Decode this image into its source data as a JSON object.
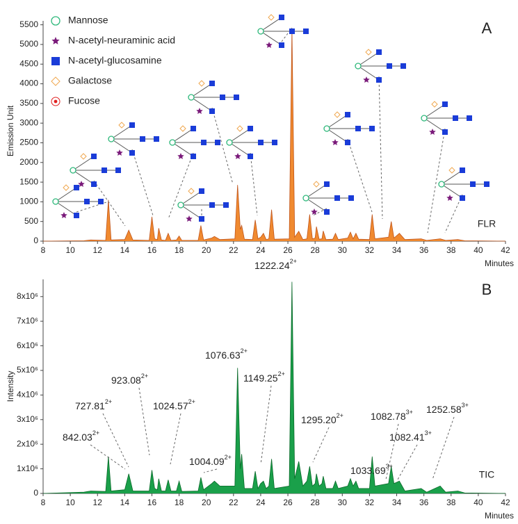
{
  "chart_data": [
    {
      "type": "area",
      "panel": "A",
      "trace_label": "FLR",
      "y_label": "Emission Unit",
      "x_label": "Minutes",
      "color": "#f08a30",
      "edge": "#c0541a",
      "legend": [
        {
          "label": "Mannose",
          "symbol": "circle",
          "color": "#2db87a"
        },
        {
          "label": "N-acetyl-neuraminic acid",
          "symbol": "star",
          "color": "#7a1a7a"
        },
        {
          "label": "N-acetyl-glucosamine",
          "symbol": "square",
          "color": "#1a3cd8"
        },
        {
          "label": "Galactose",
          "symbol": "diamond",
          "color": "#f0a850"
        },
        {
          "label": "Fucose",
          "symbol": "fucose",
          "color": "#e02020"
        }
      ],
      "xlim": [
        8,
        42
      ],
      "xticks": [
        8,
        10,
        12,
        14,
        16,
        18,
        20,
        22,
        24,
        26,
        28,
        30,
        32,
        34,
        36,
        38,
        40,
        42
      ],
      "ylim": [
        0,
        5600
      ],
      "yticks": [
        0,
        500,
        1000,
        1500,
        2000,
        2500,
        3000,
        3500,
        4000,
        4500,
        5000,
        5500
      ],
      "x": [
        8,
        11,
        11.5,
        12.6,
        12.8,
        13.0,
        14.0,
        14.3,
        14.6,
        15.8,
        16.0,
        16.2,
        16.4,
        16.5,
        16.7,
        17.0,
        17.2,
        17.4,
        17.8,
        18.0,
        18.2,
        19.4,
        19.6,
        19.8,
        20.4,
        20.6,
        21.0,
        22.1,
        22.3,
        22.5,
        22.6,
        22.8,
        23.4,
        23.6,
        23.8,
        24.0,
        24.2,
        24.4,
        24.6,
        24.8,
        25.0,
        26.1,
        26.3,
        26.5,
        26.8,
        27.1,
        27.4,
        27.6,
        27.8,
        28.0,
        28.1,
        28.3,
        28.5,
        28.6,
        28.8,
        29.3,
        29.5,
        29.7,
        30.4,
        30.6,
        30.8,
        31.0,
        31.2,
        32.0,
        32.2,
        32.4,
        33.4,
        33.6,
        33.8,
        34.2,
        34.6,
        35.8,
        36.2,
        37.2,
        37.6,
        38.5,
        39,
        42
      ],
      "values": [
        0,
        10,
        30,
        20,
        1050,
        30,
        40,
        280,
        30,
        20,
        620,
        60,
        40,
        330,
        30,
        20,
        200,
        20,
        30,
        130,
        20,
        20,
        400,
        30,
        80,
        120,
        40,
        60,
        1430,
        300,
        400,
        50,
        40,
        540,
        60,
        100,
        200,
        40,
        60,
        800,
        50,
        60,
        5400,
        100,
        250,
        40,
        60,
        680,
        60,
        80,
        370,
        50,
        60,
        260,
        40,
        50,
        200,
        40,
        80,
        230,
        60,
        200,
        50,
        40,
        680,
        60,
        100,
        500,
        80,
        200,
        40,
        60,
        20,
        60,
        20,
        40,
        10,
        0
      ]
    },
    {
      "type": "area",
      "panel": "B",
      "trace_label": "TIC",
      "y_label": "Intensity",
      "x_label": "Minutes",
      "color": "#1aa04a",
      "edge": "#0a6a2a",
      "xlim": [
        8,
        42
      ],
      "xticks": [
        8,
        10,
        12,
        14,
        16,
        18,
        20,
        22,
        24,
        26,
        28,
        30,
        32,
        34,
        36,
        38,
        40,
        42
      ],
      "ylim": [
        0,
        8700000
      ],
      "yticks": [
        0,
        {
          "value": 1000000,
          "label": "1x10⁶"
        },
        {
          "value": 2000000,
          "label": "2x10⁶"
        },
        {
          "value": 3000000,
          "label": "3x10⁶"
        },
        {
          "value": 4000000,
          "label": "4x10⁶"
        },
        {
          "value": 5000000,
          "label": "5x10⁶"
        },
        {
          "value": 6000000,
          "label": "6x10⁶"
        },
        {
          "value": 7000000,
          "label": "7x10⁶"
        },
        {
          "value": 8000000,
          "label": "8x10⁶"
        }
      ],
      "x": [
        8,
        11,
        11.5,
        12.6,
        12.8,
        13.0,
        14.0,
        14.3,
        14.6,
        15.8,
        16.0,
        16.2,
        16.4,
        16.5,
        16.7,
        17.0,
        17.2,
        17.4,
        17.8,
        18.0,
        18.2,
        19.4,
        19.6,
        19.8,
        20.4,
        20.6,
        21.0,
        22.1,
        22.3,
        22.5,
        22.6,
        22.8,
        23.4,
        23.6,
        23.8,
        24.0,
        24.2,
        24.4,
        24.6,
        24.8,
        25.0,
        26.1,
        26.3,
        26.5,
        26.8,
        27.1,
        27.4,
        27.6,
        27.8,
        28.0,
        28.1,
        28.3,
        28.5,
        28.6,
        28.8,
        29.3,
        29.5,
        29.7,
        30.4,
        30.6,
        30.8,
        31.0,
        31.2,
        32.0,
        32.2,
        32.4,
        33.4,
        33.6,
        33.8,
        34.2,
        34.6,
        35.8,
        36.2,
        37.2,
        37.6,
        38.5,
        39,
        42
      ],
      "values": [
        0,
        50000,
        100000,
        80000,
        1500000,
        100000,
        150000,
        800000,
        100000,
        100000,
        950000,
        200000,
        150000,
        600000,
        100000,
        100000,
        550000,
        100000,
        100000,
        500000,
        80000,
        100000,
        650000,
        150000,
        400000,
        500000,
        300000,
        300000,
        5100000,
        1000000,
        1600000,
        200000,
        200000,
        900000,
        200000,
        400000,
        500000,
        200000,
        300000,
        1400000,
        200000,
        300000,
        8600000,
        600000,
        1300000,
        300000,
        500000,
        1100000,
        300000,
        400000,
        800000,
        300000,
        400000,
        700000,
        200000,
        200000,
        500000,
        200000,
        300000,
        600000,
        300000,
        500000,
        200000,
        200000,
        1500000,
        300000,
        400000,
        1100000,
        400000,
        500000,
        100000,
        200000,
        50000,
        300000,
        50000,
        100000,
        20000,
        0
      ],
      "annotations": [
        {
          "text": "842.03",
          "charge": "2+"
        },
        {
          "text": "727.81",
          "charge": "2+"
        },
        {
          "text": "923.08",
          "charge": "2+"
        },
        {
          "text": "1024.57",
          "charge": "2+"
        },
        {
          "text": "1004.09",
          "charge": "2+"
        },
        {
          "text": "1076.63",
          "charge": "2+"
        },
        {
          "text": "1149.25",
          "charge": "2+"
        },
        {
          "text": "1222.24",
          "charge": "2+"
        },
        {
          "text": "1295.20",
          "charge": "2+"
        },
        {
          "text": "1033.69",
          "charge": "3+"
        },
        {
          "text": "1082.78",
          "charge": "3+"
        },
        {
          "text": "1082.41",
          "charge": "3+"
        },
        {
          "text": "1252.58",
          "charge": "3+"
        }
      ]
    }
  ]
}
